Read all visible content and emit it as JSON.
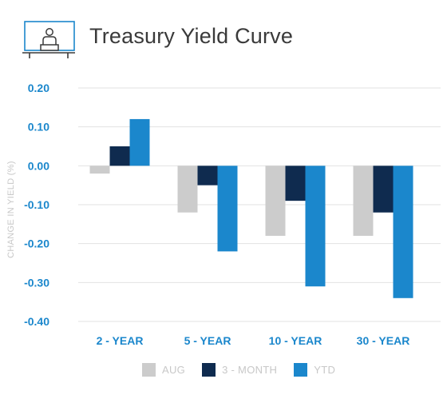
{
  "header": {
    "title": "Treasury Yield Curve",
    "icon": "presenter-at-board-icon"
  },
  "colors": {
    "AUG": "#cccccc",
    "3 - MONTH": "#0f2b4f",
    "YTD": "#1b87cc",
    "tick_label": "#1b87cc",
    "axis_label": "#c8c8c8",
    "grid": "#e2e2e2"
  },
  "chart_data": {
    "type": "bar",
    "title": "Treasury Yield Curve",
    "xlabel": "",
    "ylabel": "CHANGE IN YIELD (%)",
    "categories": [
      "2 - YEAR",
      "5 - YEAR",
      "10 - YEAR",
      "30 - YEAR"
    ],
    "series": [
      {
        "name": "AUG",
        "values": [
          -0.02,
          -0.12,
          -0.18,
          -0.18
        ]
      },
      {
        "name": "3 - MONTH",
        "values": [
          0.05,
          -0.05,
          -0.09,
          -0.12
        ]
      },
      {
        "name": "YTD",
        "values": [
          0.12,
          -0.22,
          -0.31,
          -0.34
        ]
      }
    ],
    "ylim": [
      -0.4,
      0.2
    ],
    "yticks": [
      "0.20",
      "0.10",
      "0.00",
      "-0.10",
      "-0.20",
      "-0.30",
      "-0.40"
    ],
    "ytick_values": [
      0.2,
      0.1,
      0.0,
      -0.1,
      -0.2,
      -0.3,
      -0.4
    ],
    "grid": true,
    "legend_position": "bottom"
  },
  "legend": {
    "items": [
      {
        "label": "AUG"
      },
      {
        "label": "3 - MONTH"
      },
      {
        "label": "YTD"
      }
    ]
  }
}
